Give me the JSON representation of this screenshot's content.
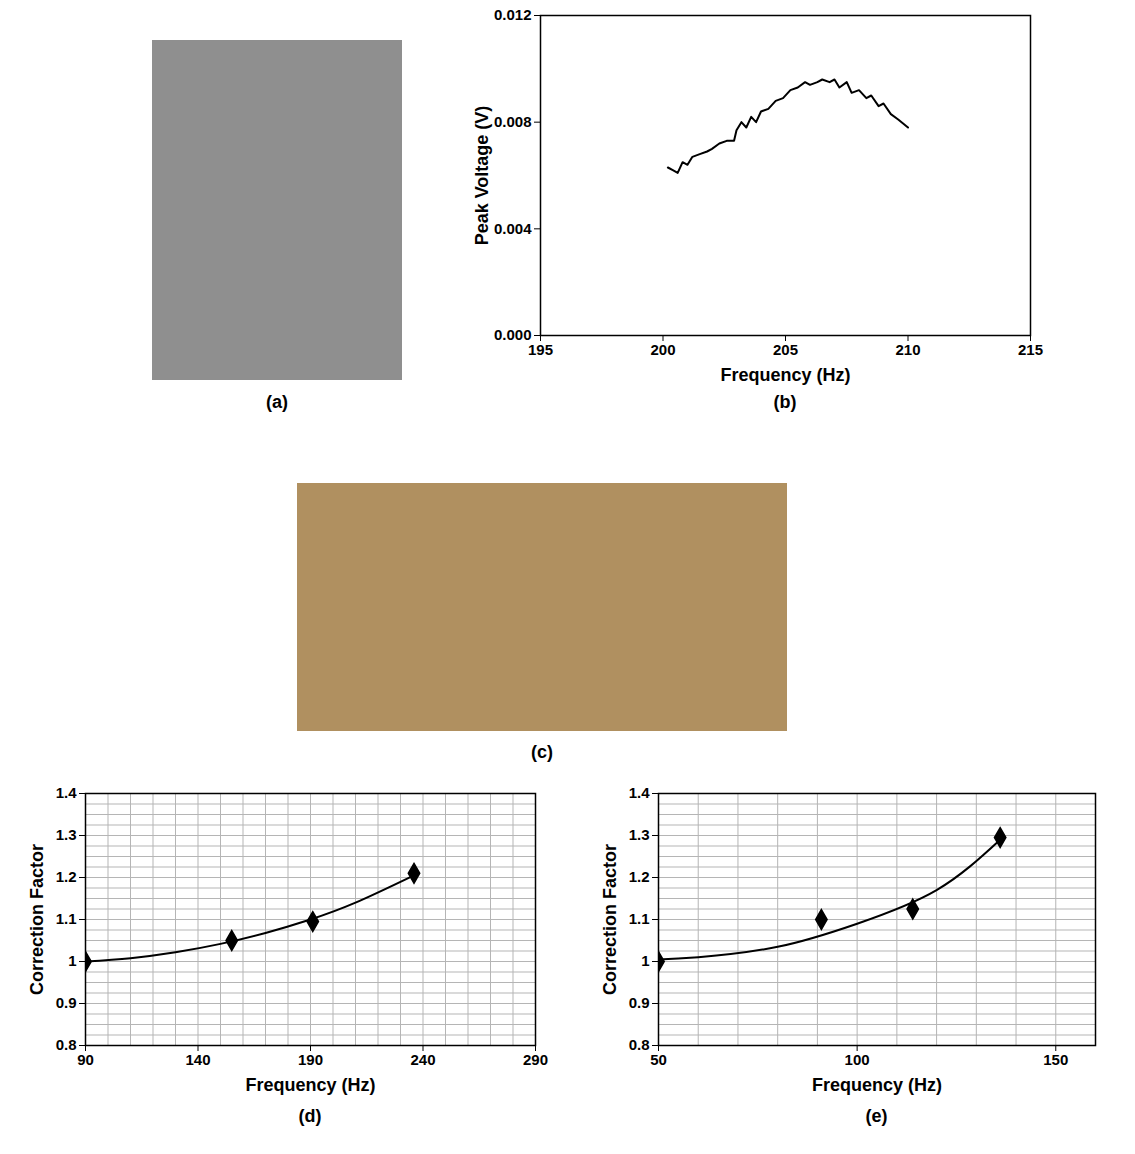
{
  "chart_data": [
    {
      "type": "line",
      "title": "(b)",
      "x_label": "Frequency (Hz)",
      "y_label": "Peak Voltage (V)",
      "xlim": [
        195,
        215
      ],
      "xticks": [
        195,
        200,
        205,
        210,
        215
      ],
      "ylim": [
        0,
        0.012
      ],
      "yticks": [
        {
          "value": 0,
          "label": "0.000"
        },
        {
          "value": 0.004,
          "label": "0.004"
        },
        {
          "value": 0.008,
          "label": "0.008"
        },
        {
          "value": 0.012,
          "label": "0.012"
        }
      ],
      "grid": false,
      "series": [
        {
          "type": "line",
          "color": "#000000",
          "x": [
            200.2,
            200.4,
            200.6,
            200.8,
            201.0,
            201.2,
            201.5,
            201.8,
            202.0,
            202.3,
            202.6,
            202.9,
            203.0,
            203.2,
            203.4,
            203.6,
            203.8,
            204.0,
            204.3,
            204.6,
            204.9,
            205.2,
            205.5,
            205.8,
            206.0,
            206.3,
            206.5,
            206.8,
            207.0,
            207.2,
            207.5,
            207.7,
            208.0,
            208.3,
            208.5,
            208.8,
            209.0,
            209.3,
            209.6,
            210.0
          ],
          "values": [
            0.0063,
            0.0062,
            0.0061,
            0.0065,
            0.0064,
            0.0067,
            0.0068,
            0.0069,
            0.007,
            0.0072,
            0.0073,
            0.0073,
            0.0077,
            0.008,
            0.0078,
            0.0082,
            0.008,
            0.0084,
            0.0085,
            0.0088,
            0.0089,
            0.0092,
            0.0093,
            0.0095,
            0.0094,
            0.0095,
            0.0096,
            0.0095,
            0.0096,
            0.0093,
            0.0095,
            0.0091,
            0.0092,
            0.0089,
            0.009,
            0.0086,
            0.0087,
            0.0083,
            0.0081,
            0.0078
          ]
        }
      ]
    },
    {
      "type": "scatter",
      "title": "(d)",
      "x_label": "Frequency (Hz)",
      "y_label": "Correction Factor",
      "xlim": [
        90,
        290
      ],
      "xticks": [
        90,
        140,
        190,
        240,
        290
      ],
      "ylim": [
        0.8,
        1.4
      ],
      "yticks": [
        0.8,
        0.9,
        1,
        1.1,
        1.2,
        1.3,
        1.4
      ],
      "grid": true,
      "series": [
        {
          "type": "scatter",
          "marker": "diamond",
          "color": "#000000",
          "x": [
            90,
            155,
            191,
            236
          ],
          "values": [
            1.0,
            1.05,
            1.095,
            1.21
          ]
        },
        {
          "type": "line",
          "color": "#000000",
          "x": [
            90,
            110,
            130,
            150,
            170,
            190,
            210,
            236
          ],
          "values": [
            1.0,
            1.008,
            1.022,
            1.042,
            1.068,
            1.1,
            1.14,
            1.205
          ]
        }
      ]
    },
    {
      "type": "scatter",
      "title": "(e)",
      "x_label": "Frequency (Hz)",
      "y_label": "Correction Factor",
      "xlim": [
        50,
        160
      ],
      "xticks": [
        50,
        100,
        150
      ],
      "ylim": [
        0.8,
        1.4
      ],
      "yticks": [
        0.8,
        0.9,
        1,
        1.1,
        1.2,
        1.3,
        1.4
      ],
      "grid": true,
      "series": [
        {
          "type": "scatter",
          "marker": "diamond",
          "color": "#000000",
          "x": [
            50,
            91,
            114,
            136
          ],
          "values": [
            1.0,
            1.1,
            1.125,
            1.295
          ]
        },
        {
          "type": "line",
          "color": "#000000",
          "x": [
            50,
            60,
            80,
            100,
            120,
            136
          ],
          "values": [
            1.005,
            1.01,
            1.035,
            1.09,
            1.17,
            1.29
          ]
        }
      ]
    }
  ],
  "photos": [
    {
      "label": "(a)"
    },
    {
      "label": "(c)"
    }
  ]
}
